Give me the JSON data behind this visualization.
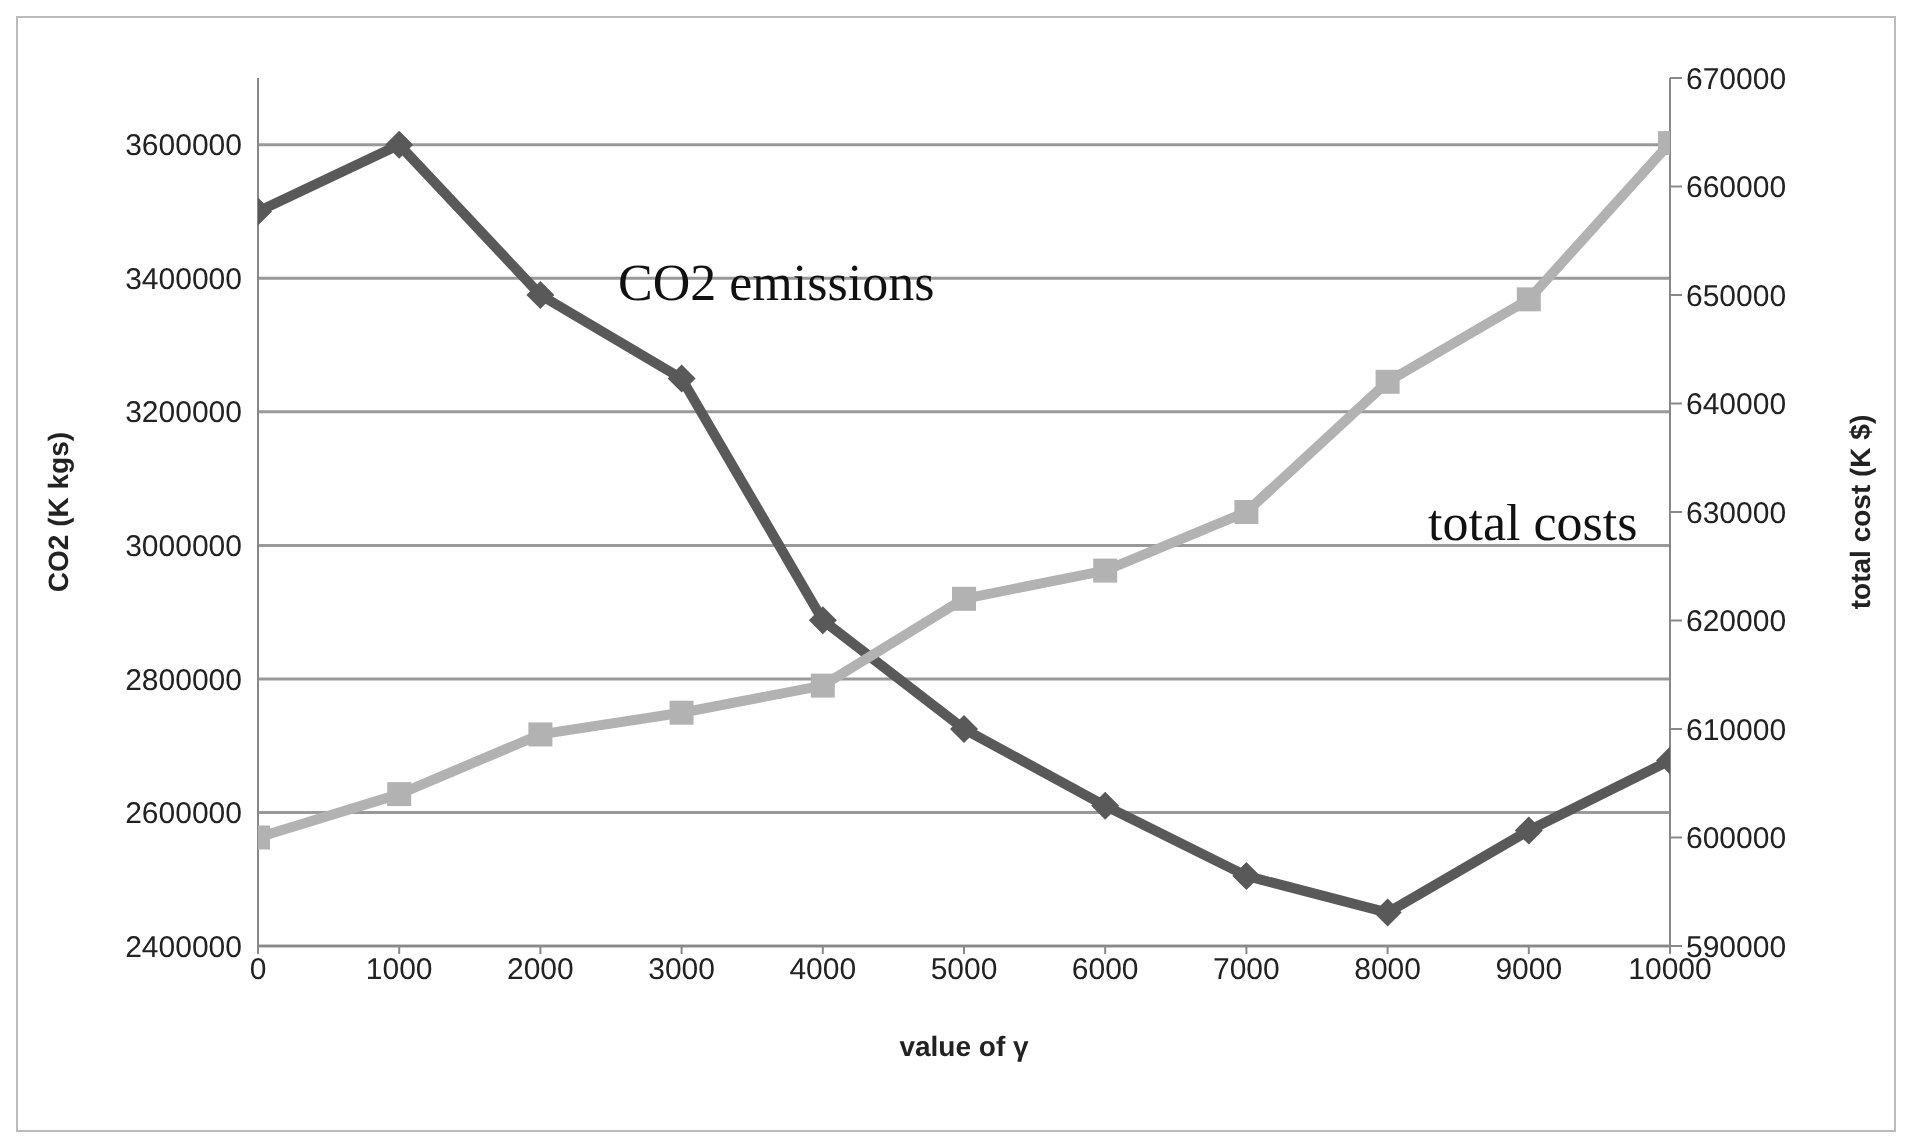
{
  "chart_data": {
    "type": "line",
    "x": [
      0,
      1000,
      2000,
      3000,
      4000,
      5000,
      6000,
      7000,
      8000,
      9000,
      10000
    ],
    "xlabel": "value of γ",
    "ylabel": "CO2 (K kgs)",
    "y2label": "total cost (K $)",
    "series": [
      {
        "name": "CO2 emissions",
        "color": "#595959",
        "marker": "diamond",
        "values": [
          3500000,
          3600000,
          3375000,
          3250000,
          2888000,
          2725000,
          2610000,
          2505000,
          2450000,
          2573000,
          2678000
        ]
      },
      {
        "name": "total costs",
        "color": "#b2b2b2",
        "marker": "square",
        "axis": "y2",
        "values": [
          600000,
          604000,
          609500,
          611500,
          614000,
          622000,
          624600,
          630000,
          642000,
          649600,
          664000
        ]
      }
    ],
    "xlim": [
      0,
      10000
    ],
    "xticks": [
      0,
      1000,
      2000,
      3000,
      4000,
      5000,
      6000,
      7000,
      8000,
      9000,
      10000
    ],
    "ylim": [
      2400000,
      3700000
    ],
    "yticks": [
      2400000,
      2600000,
      2800000,
      3000000,
      3200000,
      3400000,
      3600000
    ],
    "y2lim": [
      590000,
      670000
    ],
    "y2ticks": [
      590000,
      600000,
      610000,
      620000,
      630000,
      640000,
      650000,
      660000,
      670000
    ],
    "grid": "y",
    "legend": false,
    "line_style": "solid"
  }
}
